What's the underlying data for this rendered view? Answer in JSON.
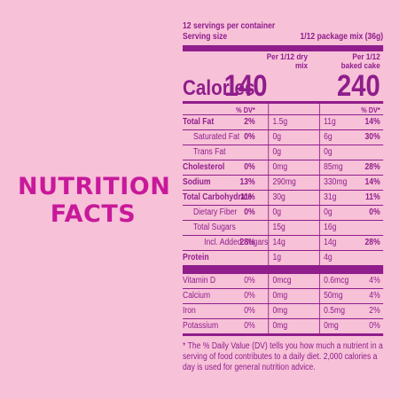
{
  "title": "NUTRITION FACTS",
  "servings": "12 servings per container",
  "serving_size_label": "Serving size",
  "serving_size_value": "1/12 package mix (36g)",
  "columns": [
    "Per 1/12 dry mix",
    "Per 1/12 baked cake"
  ],
  "calories": {
    "label": "Calories",
    "dry": "140",
    "baked": "240"
  },
  "dv_header": "% DV*",
  "nutrients": [
    {
      "name": "Total Fat",
      "bold": true,
      "indent": 0,
      "dry_amt": "1.5g",
      "dry_dv": "2%",
      "baked_amt": "11g",
      "baked_dv": "14%"
    },
    {
      "name": "Saturated Fat",
      "bold": false,
      "indent": 1,
      "dry_amt": "0g",
      "dry_dv": "0%",
      "baked_amt": "6g",
      "baked_dv": "30%"
    },
    {
      "name": "Trans Fat",
      "bold": false,
      "indent": 1,
      "dry_amt": "0g",
      "dry_dv": "",
      "baked_amt": "0g",
      "baked_dv": ""
    },
    {
      "name": "Cholesterol",
      "bold": true,
      "indent": 0,
      "dry_amt": "0mg",
      "dry_dv": "0%",
      "baked_amt": "85mg",
      "baked_dv": "28%"
    },
    {
      "name": "Sodium",
      "bold": true,
      "indent": 0,
      "dry_amt": "290mg",
      "dry_dv": "13%",
      "baked_amt": "330mg",
      "baked_dv": "14%"
    },
    {
      "name": "Total Carbohydrate",
      "bold": true,
      "indent": 0,
      "dry_amt": "30g",
      "dry_dv": "11%",
      "baked_amt": "31g",
      "baked_dv": "11%"
    },
    {
      "name": "Dietary Fiber",
      "bold": false,
      "indent": 1,
      "dry_amt": "0g",
      "dry_dv": "0%",
      "baked_amt": "0g",
      "baked_dv": "0%"
    },
    {
      "name": "Total Sugars",
      "bold": false,
      "indent": 1,
      "dry_amt": "15g",
      "dry_dv": "",
      "baked_amt": "16g",
      "baked_dv": ""
    },
    {
      "name": "Incl. Added Sugars",
      "bold": false,
      "indent": 2,
      "dry_amt": "14g",
      "dry_dv": "28%",
      "baked_amt": "14g",
      "baked_dv": "28%"
    },
    {
      "name": "Protein",
      "bold": true,
      "indent": 0,
      "dry_amt": "1g",
      "dry_dv": "",
      "baked_amt": "4g",
      "baked_dv": ""
    }
  ],
  "vitamins": [
    {
      "name": "Vitamin D",
      "dry_amt": "0mcg",
      "dry_dv": "0%",
      "baked_amt": "0.6mcg",
      "baked_dv": "4%"
    },
    {
      "name": "Calcium",
      "dry_amt": "0mg",
      "dry_dv": "0%",
      "baked_amt": "50mg",
      "baked_dv": "4%"
    },
    {
      "name": "Iron",
      "dry_amt": "0mg",
      "dry_dv": "0%",
      "baked_amt": "0.5mg",
      "baked_dv": "2%"
    },
    {
      "name": "Potassium",
      "dry_amt": "0mg",
      "dry_dv": "0%",
      "baked_amt": "0mg",
      "baked_dv": "0%"
    }
  ],
  "footnote": "* The % Daily Value (DV) tells you how much a nutrient in a serving of food contributes to a daily diet. 2,000 calories a day is used for general nutrition advice."
}
